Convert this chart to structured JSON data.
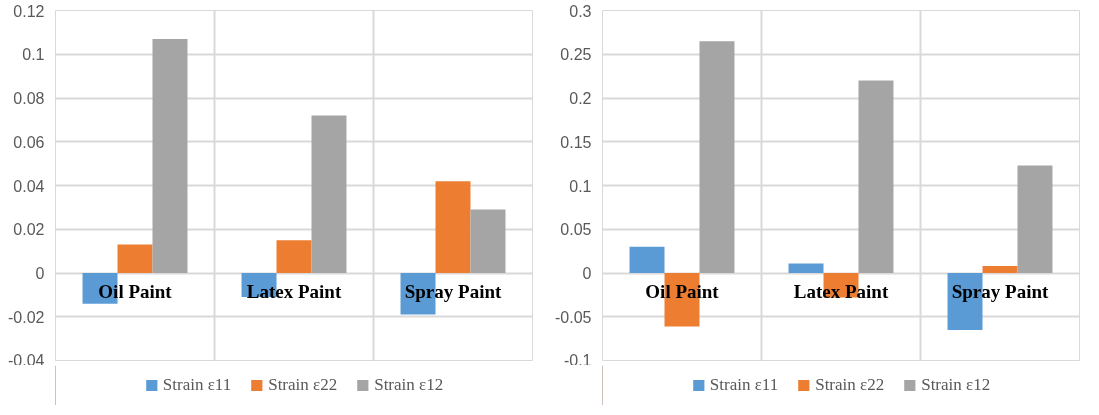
{
  "chart_data": [
    {
      "type": "bar",
      "categories": [
        "Oil Paint",
        "Latex Paint",
        "Spray Paint"
      ],
      "series": [
        {
          "name": "Strain ε11",
          "color": "#5b9bd5",
          "values": [
            -0.014,
            -0.011,
            -0.019
          ]
        },
        {
          "name": "Strain ε22",
          "color": "#ed7d31",
          "values": [
            0.013,
            0.015,
            0.042
          ]
        },
        {
          "name": "Strain ε12",
          "color": "#a5a5a5",
          "values": [
            0.107,
            0.072,
            0.029
          ]
        }
      ],
      "ylim": [
        -0.04,
        0.12
      ],
      "yticks": [
        -0.04,
        -0.02,
        0,
        0.02,
        0.04,
        0.06,
        0.08,
        0.1,
        0.12
      ],
      "grid": true,
      "legend": "bottom"
    },
    {
      "type": "bar",
      "categories": [
        "Oil Paint",
        "Latex Paint",
        "Spray Paint"
      ],
      "series": [
        {
          "name": "Strain ε11",
          "color": "#5b9bd5",
          "values": [
            0.03,
            0.011,
            -0.065
          ]
        },
        {
          "name": "Strain ε22",
          "color": "#ed7d31",
          "values": [
            -0.061,
            -0.028,
            0.008
          ]
        },
        {
          "name": "Strain ε12",
          "color": "#a5a5a5",
          "values": [
            0.265,
            0.22,
            0.123
          ]
        }
      ],
      "ylim": [
        -0.1,
        0.3
      ],
      "yticks": [
        -0.1,
        -0.05,
        0,
        0.05,
        0.1,
        0.15,
        0.2,
        0.25,
        0.3
      ],
      "grid": true,
      "legend": "bottom"
    }
  ]
}
